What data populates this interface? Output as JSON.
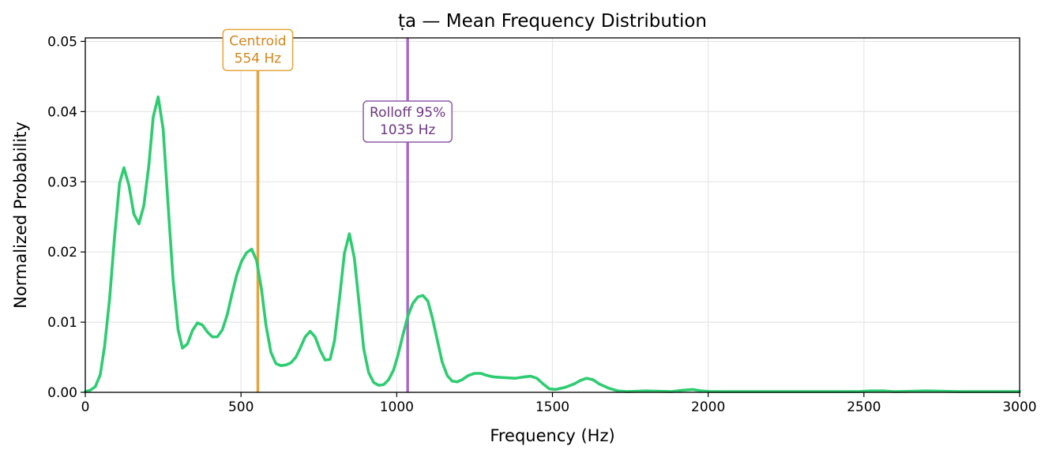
{
  "chart_data": {
    "type": "line",
    "title": "ṭa  —  Mean Frequency Distribution",
    "xlabel": "Frequency (Hz)",
    "ylabel": "Normalized Probability",
    "xlim": [
      0,
      3000
    ],
    "ylim": [
      0,
      0.0505
    ],
    "xticks": [
      0,
      500,
      1000,
      1500,
      2000,
      2500,
      3000
    ],
    "xtick_labels": [
      "0",
      "500",
      "1000",
      "1500",
      "2000",
      "2500",
      "3000"
    ],
    "yticks": [
      0,
      0.01,
      0.02,
      0.03,
      0.04,
      0.05
    ],
    "ytick_labels": [
      "0.00",
      "0.01",
      "0.02",
      "0.03",
      "0.04",
      "0.05"
    ],
    "grid": true,
    "series": [
      {
        "color": "#2ecc71",
        "x": [
          0,
          16,
          32,
          48,
          62,
          78,
          94,
          110,
          124,
          140,
          156,
          172,
          188,
          204,
          218,
          234,
          250,
          266,
          282,
          298,
          312,
          328,
          344,
          360,
          376,
          392,
          408,
          424,
          440,
          456,
          470,
          486,
          502,
          518,
          534,
          550,
          566,
          580,
          596,
          612,
          628,
          644,
          660,
          676,
          690,
          706,
          722,
          738,
          754,
          770,
          786,
          800,
          816,
          832,
          848,
          864,
          880,
          894,
          910,
          926,
          942,
          958,
          974,
          990,
          1004,
          1020,
          1036,
          1052,
          1068,
          1084,
          1100,
          1114,
          1130,
          1146,
          1162,
          1178,
          1194,
          1210,
          1230,
          1250,
          1270,
          1290,
          1310,
          1340,
          1380,
          1410,
          1430,
          1450,
          1470,
          1490,
          1510,
          1540,
          1570,
          1590,
          1610,
          1630,
          1650,
          1680,
          1710,
          1740,
          1800,
          1880,
          1920,
          1950,
          1980,
          2010,
          2100,
          2200,
          2300,
          2400,
          2480,
          2520,
          2560,
          2600,
          2700,
          2800,
          2900,
          3000
        ],
        "y": [
          0.0001,
          0.0003,
          0.0008,
          0.0025,
          0.0066,
          0.0133,
          0.0222,
          0.0298,
          0.032,
          0.0295,
          0.0254,
          0.024,
          0.0266,
          0.0323,
          0.0392,
          0.0421,
          0.0375,
          0.0266,
          0.016,
          0.0089,
          0.0063,
          0.0069,
          0.0088,
          0.0099,
          0.0096,
          0.0086,
          0.0079,
          0.0079,
          0.0089,
          0.0111,
          0.0138,
          0.0167,
          0.0187,
          0.0199,
          0.0204,
          0.0188,
          0.0146,
          0.0096,
          0.0057,
          0.0041,
          0.0038,
          0.0039,
          0.0042,
          0.005,
          0.0063,
          0.0079,
          0.0087,
          0.0079,
          0.006,
          0.0046,
          0.0047,
          0.0073,
          0.0133,
          0.0198,
          0.0226,
          0.0191,
          0.0123,
          0.0062,
          0.0028,
          0.0014,
          0.001,
          0.0011,
          0.0018,
          0.0032,
          0.0053,
          0.0082,
          0.0109,
          0.0127,
          0.0136,
          0.0138,
          0.013,
          0.0107,
          0.0075,
          0.0043,
          0.0024,
          0.0016,
          0.0015,
          0.0018,
          0.0024,
          0.0027,
          0.0027,
          0.0024,
          0.0022,
          0.0021,
          0.002,
          0.0022,
          0.0023,
          0.002,
          0.0012,
          0.0005,
          0.0004,
          0.0007,
          0.0012,
          0.0017,
          0.002,
          0.0018,
          0.0012,
          0.0006,
          0.0002,
          0.0001,
          0.0002,
          0.0001,
          0.0003,
          0.0004,
          0.0002,
          0.0001,
          0.0001,
          0.0001,
          0.0001,
          0.0001,
          0.0001,
          0.0002,
          0.0002,
          0.0001,
          0.0002,
          0.0001,
          0.0001,
          0.0001
        ]
      }
    ],
    "annotations": [
      {
        "label": "Centroid",
        "value_label": "554 Hz",
        "x": 554,
        "label_y": 0.049,
        "color": "#e8a33a",
        "text_color": "#d4861b",
        "box_border": "#e8a33a"
      },
      {
        "label": "Rolloff 95%",
        "value_label": "1035 Hz",
        "x": 1035,
        "label_y": 0.0388,
        "color": "#a569c8",
        "text_color": "#6c3483",
        "box_border": "#8e5ba6"
      }
    ]
  }
}
